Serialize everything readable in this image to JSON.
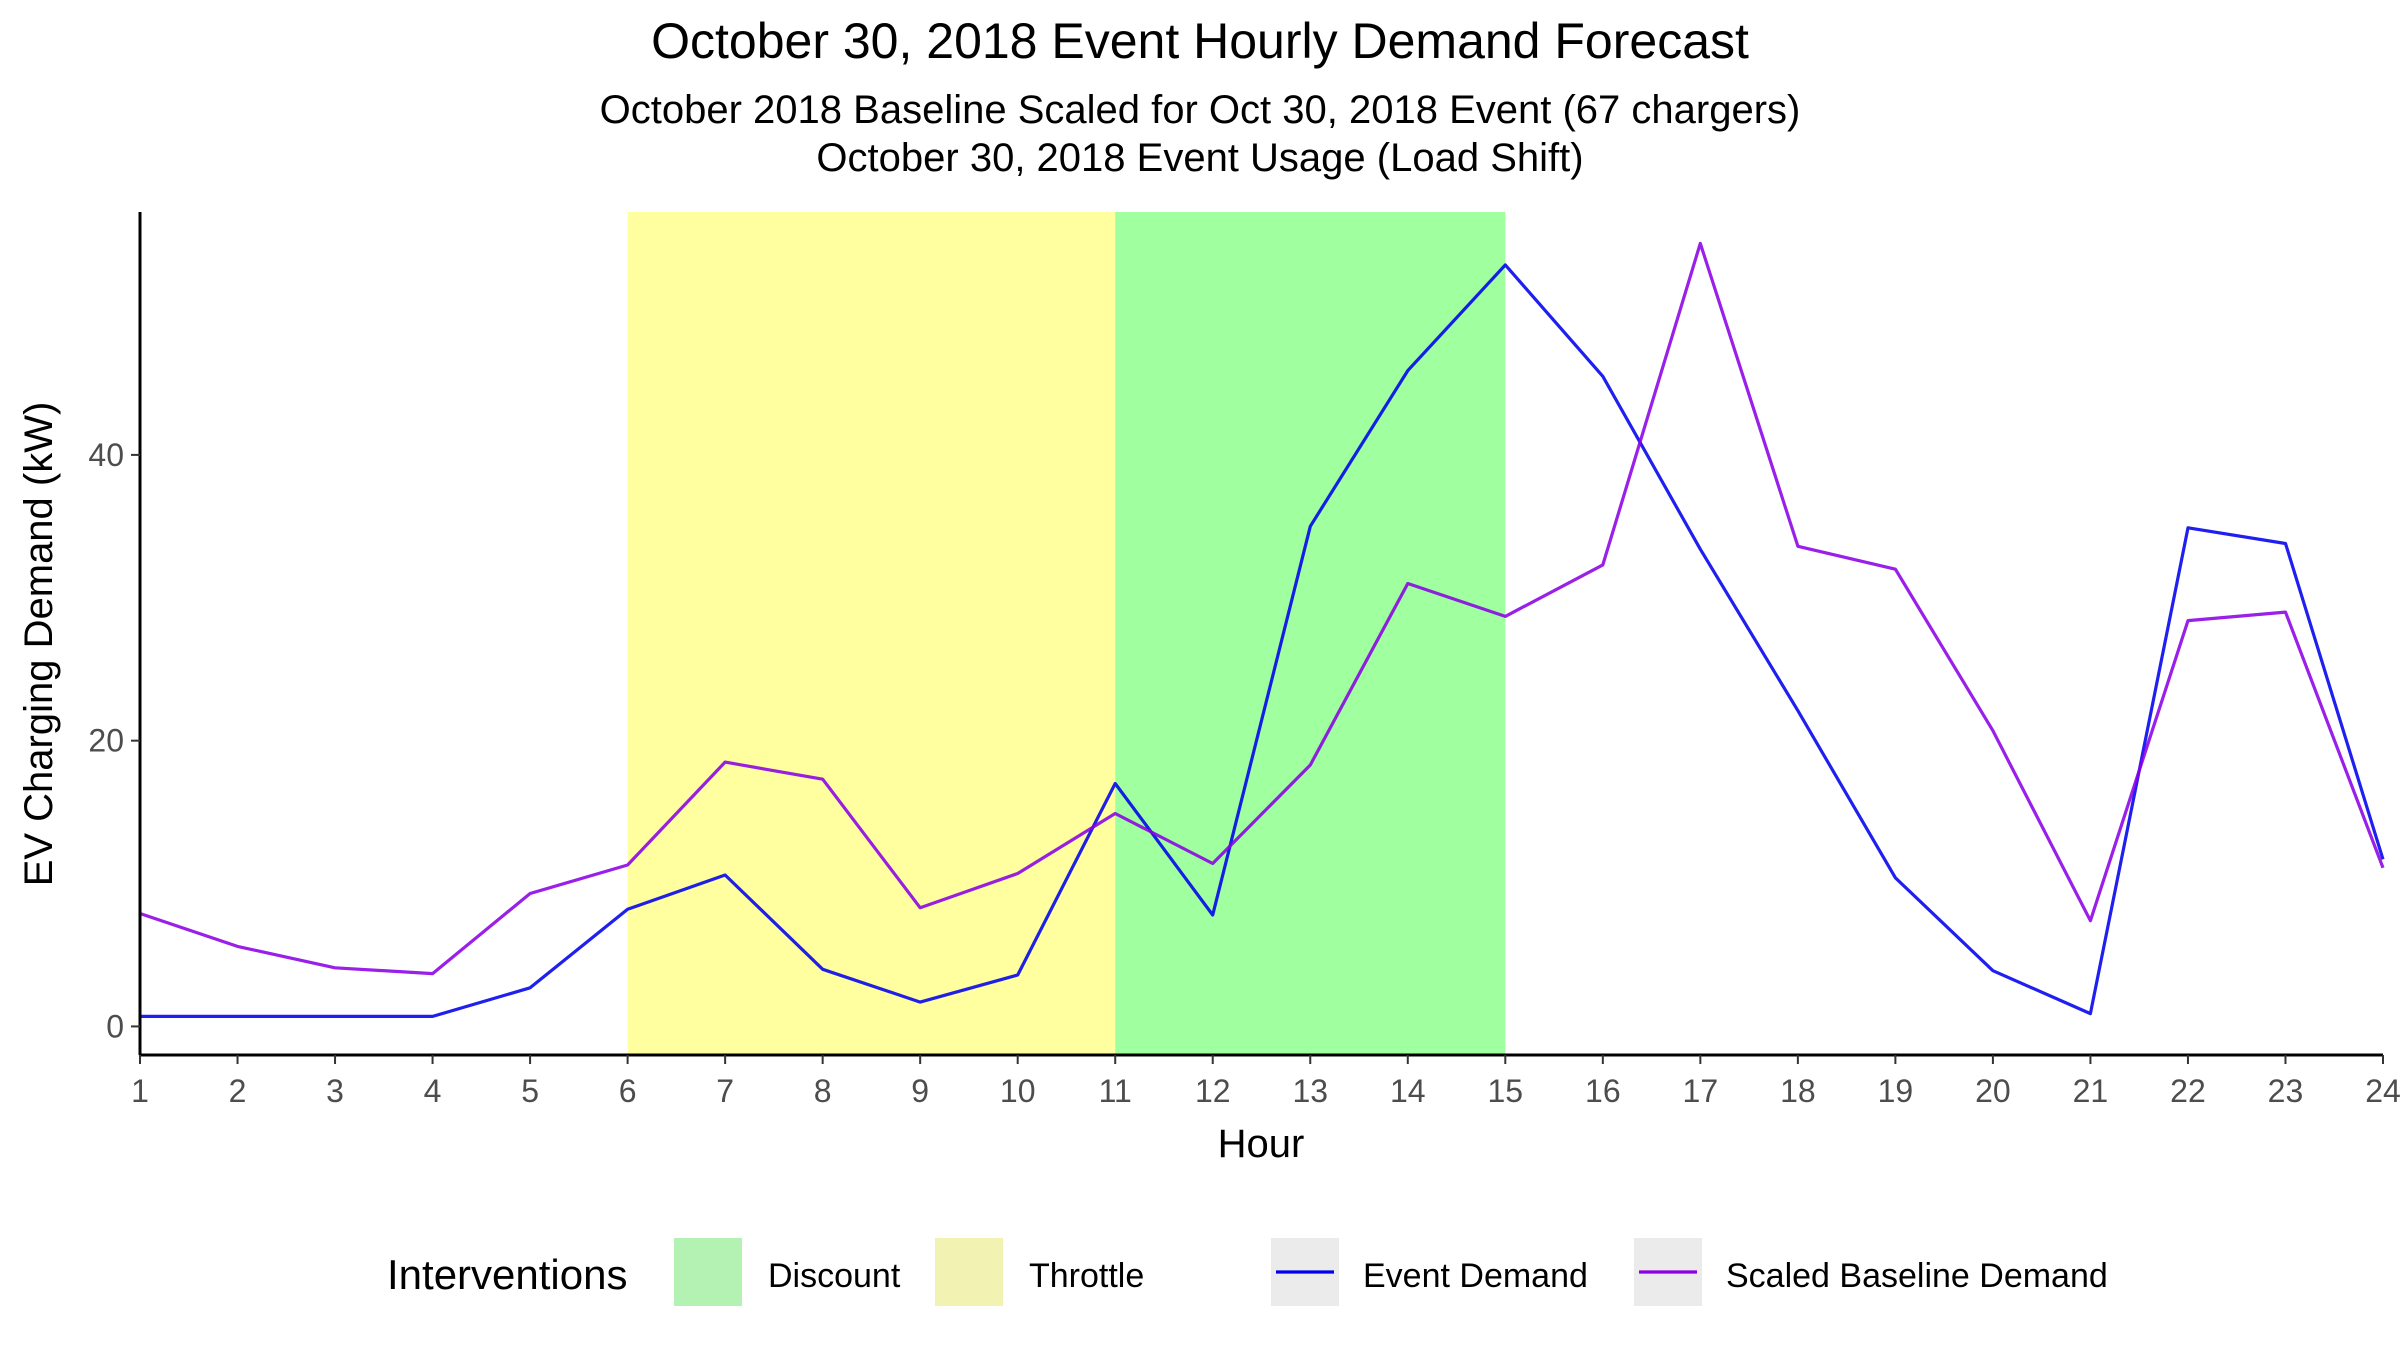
{
  "chart_data": {
    "type": "line",
    "title": "October 30, 2018 Event Hourly Demand Forecast",
    "subtitle": [
      "October 2018 Baseline Scaled for Oct 30, 2018 Event (67 chargers)",
      "October 30, 2018 Event Usage (Load Shift)"
    ],
    "xlabel": "Hour",
    "ylabel": "EV Charging Demand (kW)",
    "xlim": [
      1,
      24
    ],
    "ylim": [
      -2,
      57
    ],
    "x_ticks": [
      1,
      2,
      3,
      4,
      5,
      6,
      7,
      8,
      9,
      10,
      11,
      12,
      13,
      14,
      15,
      16,
      17,
      18,
      19,
      20,
      21,
      22,
      23,
      24
    ],
    "y_ticks": [
      0,
      20,
      40
    ],
    "grid": false,
    "legend_position": "bottom",
    "legend_title": "Interventions",
    "intervals": [
      {
        "name": "Throttle",
        "start": 6,
        "end": 11,
        "color": "#ffffa0"
      },
      {
        "name": "Discount",
        "start": 11,
        "end": 15,
        "color": "#a0ff9e"
      }
    ],
    "legend_fill": [
      {
        "name": "Discount",
        "color": "#b3f2b3"
      },
      {
        "name": "Throttle",
        "color": "#f2f2b3"
      }
    ],
    "x": [
      1,
      2,
      3,
      4,
      5,
      6,
      7,
      8,
      9,
      10,
      11,
      12,
      13,
      14,
      15,
      16,
      17,
      18,
      19,
      20,
      21,
      22,
      23,
      24
    ],
    "series": [
      {
        "name": "Event Demand",
        "color": "#0000ee",
        "values": [
          0.7,
          0.7,
          0.7,
          0.7,
          2.7,
          8.2,
          10.6,
          4.0,
          1.7,
          3.6,
          17.0,
          7.8,
          35.0,
          45.9,
          53.3,
          45.5,
          33.4,
          22.1,
          10.4,
          3.9,
          0.9,
          34.9,
          33.8,
          11.7
        ]
      },
      {
        "name": "Scaled Baseline Demand",
        "color": "#8b00e6",
        "values": [
          7.9,
          5.6,
          4.1,
          3.7,
          9.3,
          11.3,
          18.5,
          17.3,
          8.3,
          10.7,
          14.9,
          11.4,
          18.3,
          31.0,
          28.7,
          32.3,
          54.8,
          33.6,
          32.0,
          20.7,
          7.4,
          28.4,
          29.0,
          11.1
        ]
      }
    ]
  }
}
